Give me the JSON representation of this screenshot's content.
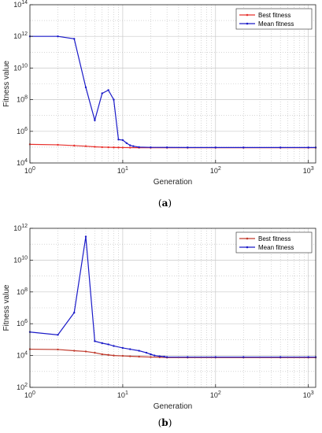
{
  "chart_data": [
    {
      "type": "line",
      "caption": "(a)",
      "xlabel": "Generation",
      "ylabel": "Fitness value",
      "xscale": "log",
      "yscale": "log",
      "xlim": [
        1,
        1200
      ],
      "ylim": [
        10000,
        100000000000000
      ],
      "x_ticks": [
        "10^0",
        "10^1",
        "10^2",
        "10^3"
      ],
      "y_ticks": [
        "10^4",
        "10^6",
        "10^8",
        "10^10",
        "10^12",
        "10^14"
      ],
      "grid": true,
      "legend_position": "top-right",
      "colors": {
        "best": "#e8302c",
        "mean": "#1a1ac8"
      },
      "series": [
        {
          "name": "Best fitness",
          "x": [
            1,
            2,
            3,
            4,
            5,
            6,
            7,
            8,
            9,
            10,
            12,
            15,
            20,
            30,
            50,
            100,
            200,
            500,
            1000,
            1200
          ],
          "y": [
            150000,
            140000,
            125000,
            115000,
            105000,
            100000,
            98000,
            96000,
            95000,
            94000,
            93000,
            92000,
            92000,
            92000,
            92000,
            92000,
            92000,
            92000,
            92000,
            92000
          ]
        },
        {
          "name": "Mean fitness",
          "x": [
            1,
            2,
            3,
            4,
            5,
            6,
            7,
            8,
            9,
            10,
            11,
            12,
            13,
            15,
            20,
            30,
            50,
            100,
            200,
            500,
            1000,
            1200
          ],
          "y": [
            1000000000000,
            1000000000000,
            700000000000,
            600000000,
            5000000,
            250000000,
            400000000,
            100000000,
            300000,
            280000,
            180000,
            130000,
            115000,
            100000,
            97000,
            96000,
            95000,
            95000,
            95000,
            95000,
            95000,
            95000
          ]
        }
      ]
    },
    {
      "type": "line",
      "caption": "(b)",
      "xlabel": "Generation",
      "ylabel": "Fitness value",
      "xscale": "log",
      "yscale": "log",
      "xlim": [
        1,
        1200
      ],
      "ylim": [
        100,
        1000000000000
      ],
      "x_ticks": [
        "10^0",
        "10^1",
        "10^2",
        "10^3"
      ],
      "y_ticks": [
        "10^2",
        "10^4",
        "10^6",
        "10^8",
        "10^10",
        "10^12"
      ],
      "grid": true,
      "legend_position": "top-right",
      "colors": {
        "best": "#c0392b",
        "mean": "#1a1ac8"
      },
      "series": [
        {
          "name": "Best fitness",
          "x": [
            1,
            2,
            3,
            4,
            5,
            6,
            7,
            8,
            10,
            12,
            15,
            20,
            25,
            30,
            50,
            100,
            200,
            500,
            1000,
            1200
          ],
          "y": [
            25000,
            24000,
            20000,
            18000,
            15000,
            12000,
            11000,
            10000,
            9500,
            9000,
            8500,
            8000,
            7800,
            7500,
            7500,
            7500,
            7500,
            7500,
            7500,
            7500
          ]
        },
        {
          "name": "Mean fitness",
          "x": [
            1,
            2,
            3,
            4,
            5,
            6,
            7,
            8,
            10,
            12,
            15,
            18,
            20,
            22,
            25,
            28,
            30,
            50,
            100,
            200,
            500,
            1000,
            1200
          ],
          "y": [
            300000,
            200000,
            5000000,
            300000000000,
            80000,
            60000,
            50000,
            40000,
            30000,
            25000,
            20000,
            15000,
            12000,
            10000,
            9000,
            8500,
            8000,
            8000,
            8000,
            8000,
            8000,
            8000,
            8000
          ]
        }
      ]
    }
  ]
}
